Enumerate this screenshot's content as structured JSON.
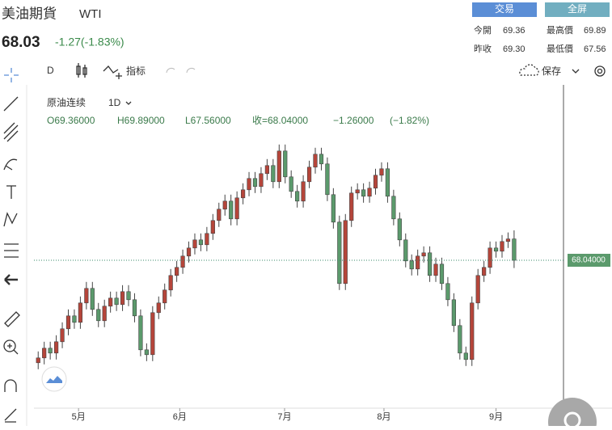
{
  "header": {
    "title": "美油期貨",
    "symbol": "WTI",
    "price": "68.03",
    "change": "-1.27(-1.83%)",
    "buttons": [
      "交易",
      "全屏"
    ],
    "stats": [
      {
        "label": "今開",
        "value": "69.36"
      },
      {
        "label": "最高價",
        "value": "69.89"
      },
      {
        "label": "昨收",
        "value": "69.30"
      },
      {
        "label": "最低價",
        "value": "67.56"
      }
    ]
  },
  "toolbar": {
    "interval": "D",
    "indicators": "指标",
    "save": "保存"
  },
  "legend": {
    "symbol": "原油连续",
    "interval": "1D",
    "open": "O69.36000",
    "high": "H69.89000",
    "low": "L67.56000",
    "close": "收=68.04000",
    "change": "−1.26000",
    "change_pct": "(−1.82%)"
  },
  "chart_data": {
    "type": "candlestick",
    "up_color": "#b5453a",
    "down_color": "#5b9a6c",
    "open": [
      61.7,
      62.0,
      62.6,
      62.3,
      63.0,
      63.8,
      64.6,
      64.2,
      65.4,
      66.3,
      65.0,
      64.3,
      65.2,
      65.7,
      65.3,
      66.1,
      65.6,
      64.6,
      62.5,
      62.2,
      64.8,
      65.4,
      66.2,
      67.1,
      67.6,
      68.3,
      68.8,
      69.3,
      69.0,
      69.7,
      70.5,
      71.2,
      71.7,
      70.6,
      71.9,
      72.4,
      73.1,
      72.6,
      73.4,
      73.9,
      72.9,
      74.8,
      73.2,
      72.3,
      71.7,
      72.9,
      73.8,
      74.6,
      74.0,
      72.1,
      70.4,
      66.6,
      70.5,
      72.2,
      72.4,
      72.0,
      72.5,
      73.3,
      73.7,
      72.0,
      70.6,
      69.3,
      68.0,
      67.5,
      68.3,
      68.5,
      67.1,
      67.8,
      66.6,
      65.6,
      64.0,
      62.3,
      61.9,
      65.4,
      67.1,
      67.6,
      68.8,
      68.6,
      69.2,
      69.36
    ],
    "high": [
      62.4,
      63.0,
      63.0,
      63.4,
      64.2,
      65.0,
      65.0,
      65.8,
      66.7,
      66.7,
      65.4,
      65.6,
      66.1,
      66.1,
      66.5,
      66.5,
      66.0,
      65.0,
      62.9,
      65.2,
      65.8,
      66.6,
      67.5,
      68.0,
      68.7,
      69.2,
      69.7,
      69.7,
      70.1,
      70.9,
      71.6,
      72.1,
      72.1,
      72.3,
      72.8,
      73.5,
      73.5,
      73.8,
      74.3,
      74.3,
      75.2,
      75.2,
      73.6,
      72.7,
      73.3,
      74.2,
      75.0,
      75.0,
      74.4,
      72.5,
      70.8,
      70.9,
      72.6,
      72.8,
      72.8,
      72.9,
      73.7,
      74.1,
      74.1,
      72.4,
      71.0,
      69.7,
      68.4,
      68.7,
      68.9,
      68.9,
      68.2,
      68.2,
      67.0,
      66.0,
      64.4,
      62.7,
      65.8,
      67.5,
      68.0,
      69.2,
      69.2,
      69.6,
      69.76,
      69.89
    ],
    "low": [
      61.3,
      61.6,
      61.9,
      61.9,
      62.6,
      63.4,
      63.8,
      63.8,
      65.0,
      64.6,
      63.9,
      63.9,
      64.8,
      64.9,
      64.9,
      65.2,
      64.2,
      62.1,
      61.8,
      61.8,
      64.4,
      65.0,
      65.8,
      66.7,
      67.2,
      67.9,
      68.4,
      68.6,
      68.6,
      69.3,
      70.1,
      70.8,
      70.2,
      70.2,
      71.5,
      72.0,
      72.2,
      72.2,
      73.0,
      72.5,
      72.5,
      72.8,
      71.9,
      71.3,
      71.3,
      72.5,
      73.4,
      73.6,
      71.7,
      70.0,
      66.2,
      66.2,
      70.1,
      71.8,
      71.6,
      71.6,
      72.1,
      72.9,
      71.6,
      70.2,
      68.9,
      67.6,
      67.1,
      67.1,
      67.9,
      66.7,
      66.7,
      66.2,
      65.2,
      63.6,
      61.9,
      61.5,
      61.5,
      65.0,
      66.7,
      67.2,
      68.2,
      68.2,
      68.8,
      67.56
    ],
    "close": [
      62.0,
      62.6,
      62.3,
      63.0,
      63.8,
      64.6,
      64.2,
      65.4,
      66.3,
      65.0,
      64.3,
      65.2,
      65.7,
      65.3,
      66.1,
      65.6,
      64.6,
      62.5,
      62.2,
      64.8,
      65.4,
      66.2,
      67.1,
      67.6,
      68.3,
      68.8,
      69.3,
      69.0,
      69.7,
      70.5,
      71.2,
      71.7,
      70.6,
      71.9,
      72.4,
      73.1,
      72.6,
      73.4,
      73.9,
      72.9,
      74.8,
      73.2,
      72.3,
      71.7,
      72.9,
      73.8,
      74.6,
      74.0,
      72.1,
      70.4,
      66.6,
      70.5,
      72.2,
      72.4,
      72.0,
      72.5,
      73.3,
      73.7,
      72.0,
      70.6,
      69.3,
      68.0,
      67.5,
      68.3,
      68.5,
      67.1,
      67.8,
      66.6,
      65.6,
      64.0,
      62.3,
      61.9,
      65.4,
      67.1,
      67.6,
      68.8,
      68.6,
      69.2,
      69.36,
      68.04
    ],
    "xlim": [
      -0.3,
      87.2
    ],
    "xticks": [
      {
        "value": 6.7,
        "label": "5月"
      },
      {
        "value": 23.5,
        "label": "6月"
      },
      {
        "value": 40.9,
        "label": "7月"
      },
      {
        "value": 57.4,
        "label": "8月"
      },
      {
        "value": 76,
        "label": "9月"
      }
    ],
    "ylim": [
      58.89,
      78.64
    ],
    "last_price": {
      "value": 68.04,
      "label": "68.04000"
    }
  }
}
